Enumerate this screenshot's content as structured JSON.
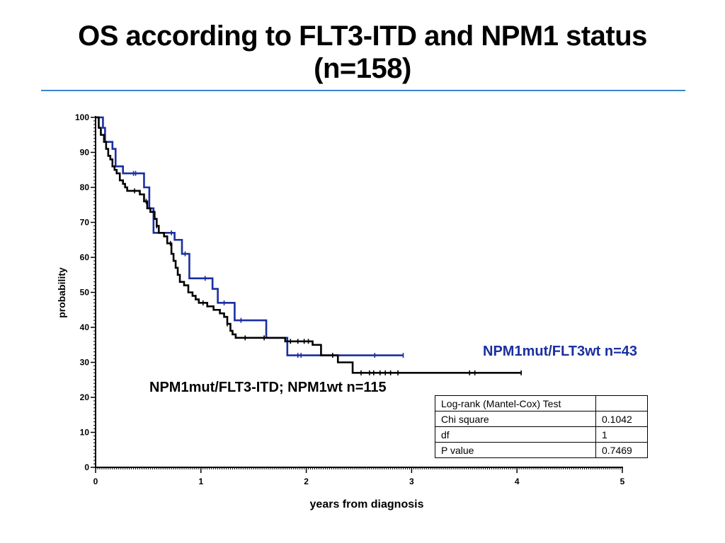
{
  "title": "OS according to FLT3-ITD and NPM1 status (n=158)",
  "chart_data": {
    "type": "line",
    "subtype": "kaplan-meier step curve",
    "title": "OS according to FLT3-ITD and NPM1 status (n=158)",
    "xlabel": "years from diagnosis",
    "ylabel": "probability",
    "xlim": [
      0,
      5
    ],
    "ylim": [
      0,
      100
    ],
    "x_ticks": [
      "0",
      "1",
      "2",
      "3",
      "4",
      "5"
    ],
    "y_ticks": [
      "0",
      "10",
      "20",
      "30",
      "40",
      "50",
      "60",
      "70",
      "80",
      "90",
      "100"
    ],
    "grid": false,
    "series": [
      {
        "name": "NPM1mut/FLT3wt n=43",
        "color": "#1a2fa0",
        "x": [
          0,
          0.07,
          0.09,
          0.16,
          0.19,
          0.26,
          0.46,
          0.51,
          0.55,
          0.75,
          0.82,
          0.89,
          1.11,
          1.16,
          1.32,
          1.62,
          1.82,
          2.36,
          2.92
        ],
        "y": [
          100,
          97,
          93,
          91,
          86,
          84,
          80,
          74,
          67,
          65,
          61,
          54,
          51,
          47,
          42,
          37,
          32,
          32,
          32
        ],
        "censor_x": [
          0.36,
          0.38,
          0.72,
          0.85,
          1.04,
          1.22,
          1.38,
          1.92,
          1.95,
          2.65,
          2.92
        ]
      },
      {
        "name": "NPM1mut/FLT3-ITD; NPM1wt n=115",
        "color": "#000000",
        "x": [
          0,
          0.03,
          0.05,
          0.08,
          0.1,
          0.12,
          0.14,
          0.16,
          0.18,
          0.2,
          0.23,
          0.26,
          0.28,
          0.3,
          0.33,
          0.36,
          0.42,
          0.46,
          0.49,
          0.52,
          0.56,
          0.58,
          0.6,
          0.62,
          0.65,
          0.68,
          0.72,
          0.74,
          0.76,
          0.78,
          0.8,
          0.82,
          0.84,
          0.88,
          0.92,
          0.95,
          0.98,
          1.02,
          1.06,
          1.12,
          1.18,
          1.22,
          1.25,
          1.28,
          1.3,
          1.33,
          1.38,
          1.5,
          1.8,
          2.06,
          2.14,
          2.3,
          2.44,
          2.6,
          3.0,
          4.04
        ],
        "y": [
          100,
          97,
          95,
          93,
          91,
          89,
          88,
          86,
          85,
          84,
          82,
          81,
          80,
          79,
          79,
          79,
          78,
          76,
          74,
          73,
          71,
          69,
          67,
          67,
          66,
          64,
          61,
          59,
          57,
          55,
          53,
          53,
          52,
          50,
          49,
          48,
          47,
          47,
          46,
          45,
          44,
          43,
          41,
          39,
          38,
          37,
          37,
          37,
          36,
          35,
          32,
          30,
          27,
          27,
          27,
          27
        ],
        "censor_x": [
          0.37,
          0.48,
          0.58,
          0.71,
          1.02,
          1.25,
          1.42,
          1.6,
          1.85,
          1.92,
          1.98,
          2.02,
          2.25,
          2.52,
          2.6,
          2.64,
          2.7,
          2.75,
          2.8,
          2.87,
          3.55,
          3.6,
          4.04
        ]
      }
    ]
  },
  "legend_blue": "NPM1mut/FLT3wt n=43",
  "legend_black": "NPM1mut/FLT3-ITD; NPM1wt n=115",
  "stats": {
    "rows": [
      [
        "Log-rank (Mantel-Cox) Test",
        ""
      ],
      [
        "Chi square",
        "0.1042"
      ],
      [
        "df",
        "1"
      ],
      [
        "P value",
        "0.7469"
      ]
    ]
  }
}
